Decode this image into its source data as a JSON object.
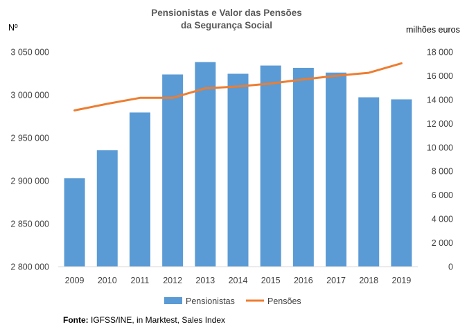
{
  "chart_data": {
    "type": "bar+line",
    "title": [
      "Pensionistas e Valor das Pensões",
      "da Segurança Social"
    ],
    "categories": [
      "2009",
      "2010",
      "2011",
      "2012",
      "2013",
      "2014",
      "2015",
      "2016",
      "2017",
      "2018",
      "2019"
    ],
    "left_axis": {
      "unit_label": "Nº",
      "ylim": [
        2800000,
        3050000
      ],
      "ticks": [
        2800000,
        2850000,
        2900000,
        2950000,
        3000000,
        3050000
      ],
      "tick_labels": [
        "2 800 000",
        "2 850 000",
        "2 900 000",
        "2 950 000",
        "3 000 000",
        "3 050 000"
      ]
    },
    "right_axis": {
      "unit_label": "milhões euros",
      "ylim": [
        0,
        18000
      ],
      "ticks": [
        0,
        2000,
        4000,
        6000,
        8000,
        10000,
        12000,
        14000,
        16000,
        18000
      ],
      "tick_labels": [
        "0",
        "2 000",
        "4 000",
        "6 000",
        "8 000",
        "10 000",
        "12 000",
        "14 000",
        "16 000",
        "18 000"
      ]
    },
    "series": [
      {
        "name": "Pensionistas",
        "kind": "bar",
        "axis": "left",
        "color": "#5B9BD5",
        "values": [
          2903000,
          2935500,
          2979500,
          3023800,
          3038200,
          3024600,
          3034200,
          3031500,
          3026000,
          2997200,
          2994800
        ]
      },
      {
        "name": "Pensões",
        "kind": "line",
        "axis": "right",
        "color": "#ED7D31",
        "values": [
          13100,
          13650,
          14150,
          14150,
          14950,
          15100,
          15350,
          15700,
          16000,
          16250,
          17050
        ]
      }
    ],
    "legend_position": "bottom",
    "grid": false
  },
  "source": {
    "label": "Fonte:",
    "text": " IGFSS/INE, in Marktest, Sales Index"
  }
}
